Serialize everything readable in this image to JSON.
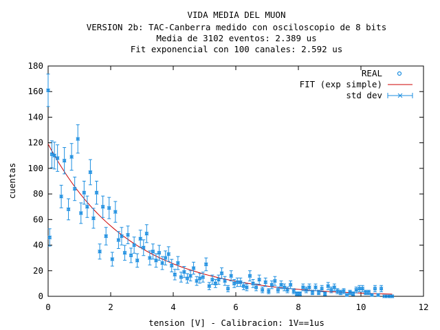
{
  "chart_data": {
    "type": "scatter",
    "title": "VIDA MEDIA DEL MUON",
    "subtitle_lines": [
      "VERSION 2b: TAC-Canberra medido con osciloscopio de 8 bits",
      "Media de 3102 eventos: 2.389 us",
      "Fit exponencial con 100 canales: 2.592 us"
    ],
    "xlabel": "tension [V] - Calibracion: 1V==1us",
    "ylabel": "cuentas",
    "xlim": [
      0,
      12
    ],
    "ylim": [
      0,
      180
    ],
    "x_ticks": [
      0,
      2,
      4,
      6,
      8,
      10,
      12
    ],
    "y_ticks": [
      0,
      20,
      40,
      60,
      80,
      100,
      120,
      140,
      160,
      180
    ],
    "grid": false,
    "legend_position": "top-right",
    "legend": [
      "REAL",
      "FIT (exp simple)",
      "std dev"
    ],
    "colors": {
      "data": "#1a8de0",
      "fit": "#cc0000",
      "axes": "#000000"
    },
    "fit": {
      "amplitude": 119,
      "tau": 2.592,
      "x_range": [
        0,
        11
      ]
    },
    "series": [
      {
        "name": "std dev",
        "points": [
          {
            "x": 0.0,
            "y": 161
          },
          {
            "x": 0.05,
            "y": 46
          },
          {
            "x": 0.12,
            "y": 111
          },
          {
            "x": 0.2,
            "y": 110
          },
          {
            "x": 0.3,
            "y": 108
          },
          {
            "x": 0.42,
            "y": 78
          },
          {
            "x": 0.52,
            "y": 106
          },
          {
            "x": 0.65,
            "y": 68
          },
          {
            "x": 0.75,
            "y": 109
          },
          {
            "x": 0.85,
            "y": 84
          },
          {
            "x": 0.95,
            "y": 123
          },
          {
            "x": 1.05,
            "y": 65
          },
          {
            "x": 1.15,
            "y": 81
          },
          {
            "x": 1.25,
            "y": 70
          },
          {
            "x": 1.35,
            "y": 97
          },
          {
            "x": 1.45,
            "y": 61
          },
          {
            "x": 1.55,
            "y": 81
          },
          {
            "x": 1.65,
            "y": 35
          },
          {
            "x": 1.75,
            "y": 70
          },
          {
            "x": 1.85,
            "y": 47
          },
          {
            "x": 1.95,
            "y": 69
          },
          {
            "x": 2.05,
            "y": 29
          },
          {
            "x": 2.15,
            "y": 66
          },
          {
            "x": 2.25,
            "y": 44
          },
          {
            "x": 2.35,
            "y": 47
          },
          {
            "x": 2.45,
            "y": 34
          },
          {
            "x": 2.55,
            "y": 48
          },
          {
            "x": 2.65,
            "y": 32
          },
          {
            "x": 2.75,
            "y": 40
          },
          {
            "x": 2.85,
            "y": 28
          },
          {
            "x": 2.95,
            "y": 45
          },
          {
            "x": 3.05,
            "y": 38
          },
          {
            "x": 3.15,
            "y": 49
          },
          {
            "x": 3.25,
            "y": 30
          },
          {
            "x": 3.35,
            "y": 35
          },
          {
            "x": 3.45,
            "y": 28
          },
          {
            "x": 3.55,
            "y": 34
          },
          {
            "x": 3.65,
            "y": 26
          },
          {
            "x": 3.75,
            "y": 30
          },
          {
            "x": 3.85,
            "y": 33
          },
          {
            "x": 3.95,
            "y": 24
          },
          {
            "x": 4.05,
            "y": 17
          },
          {
            "x": 4.15,
            "y": 26
          },
          {
            "x": 4.25,
            "y": 15
          },
          {
            "x": 4.35,
            "y": 19
          },
          {
            "x": 4.45,
            "y": 14
          },
          {
            "x": 4.55,
            "y": 16
          },
          {
            "x": 4.65,
            "y": 22
          },
          {
            "x": 4.75,
            "y": 12
          },
          {
            "x": 4.85,
            "y": 14
          },
          {
            "x": 4.95,
            "y": 15
          },
          {
            "x": 5.05,
            "y": 25
          },
          {
            "x": 5.15,
            "y": 8
          },
          {
            "x": 5.25,
            "y": 13
          },
          {
            "x": 5.35,
            "y": 10
          },
          {
            "x": 5.45,
            "y": 13
          },
          {
            "x": 5.55,
            "y": 18
          },
          {
            "x": 5.65,
            "y": 12
          },
          {
            "x": 5.75,
            "y": 6
          },
          {
            "x": 5.85,
            "y": 16
          },
          {
            "x": 5.95,
            "y": 10
          },
          {
            "x": 6.05,
            "y": 11
          },
          {
            "x": 6.15,
            "y": 11
          },
          {
            "x": 6.25,
            "y": 8
          },
          {
            "x": 6.35,
            "y": 7
          },
          {
            "x": 6.45,
            "y": 16
          },
          {
            "x": 6.55,
            "y": 10
          },
          {
            "x": 6.65,
            "y": 7
          },
          {
            "x": 6.75,
            "y": 13
          },
          {
            "x": 6.85,
            "y": 5
          },
          {
            "x": 6.95,
            "y": 11
          },
          {
            "x": 7.05,
            "y": 4
          },
          {
            "x": 7.15,
            "y": 9
          },
          {
            "x": 7.25,
            "y": 12
          },
          {
            "x": 7.35,
            "y": 5
          },
          {
            "x": 7.45,
            "y": 9
          },
          {
            "x": 7.55,
            "y": 7
          },
          {
            "x": 7.65,
            "y": 5
          },
          {
            "x": 7.75,
            "y": 9
          },
          {
            "x": 7.85,
            "y": 4
          },
          {
            "x": 7.95,
            "y": 2
          },
          {
            "x": 8.05,
            "y": 2
          },
          {
            "x": 8.15,
            "y": 7
          },
          {
            "x": 8.25,
            "y": 5
          },
          {
            "x": 8.35,
            "y": 7
          },
          {
            "x": 8.45,
            "y": 3
          },
          {
            "x": 8.55,
            "y": 7
          },
          {
            "x": 8.65,
            "y": 3
          },
          {
            "x": 8.75,
            "y": 6
          },
          {
            "x": 8.85,
            "y": 2
          },
          {
            "x": 8.95,
            "y": 8
          },
          {
            "x": 9.05,
            "y": 5
          },
          {
            "x": 9.15,
            "y": 7
          },
          {
            "x": 9.25,
            "y": 4
          },
          {
            "x": 9.35,
            "y": 3
          },
          {
            "x": 9.45,
            "y": 4
          },
          {
            "x": 9.55,
            "y": 1
          },
          {
            "x": 9.65,
            "y": 3
          },
          {
            "x": 9.75,
            "y": 2
          },
          {
            "x": 9.85,
            "y": 5
          },
          {
            "x": 9.95,
            "y": 6
          },
          {
            "x": 10.05,
            "y": 6
          },
          {
            "x": 10.15,
            "y": 3
          },
          {
            "x": 10.25,
            "y": 3
          },
          {
            "x": 10.35,
            "y": 1
          },
          {
            "x": 10.45,
            "y": 6
          },
          {
            "x": 10.55,
            "y": 1
          },
          {
            "x": 10.65,
            "y": 6
          },
          {
            "x": 10.75,
            "y": 0
          },
          {
            "x": 10.85,
            "y": 0
          },
          {
            "x": 10.95,
            "y": 0
          },
          {
            "x": 11.0,
            "y": 0
          }
        ]
      }
    ]
  }
}
